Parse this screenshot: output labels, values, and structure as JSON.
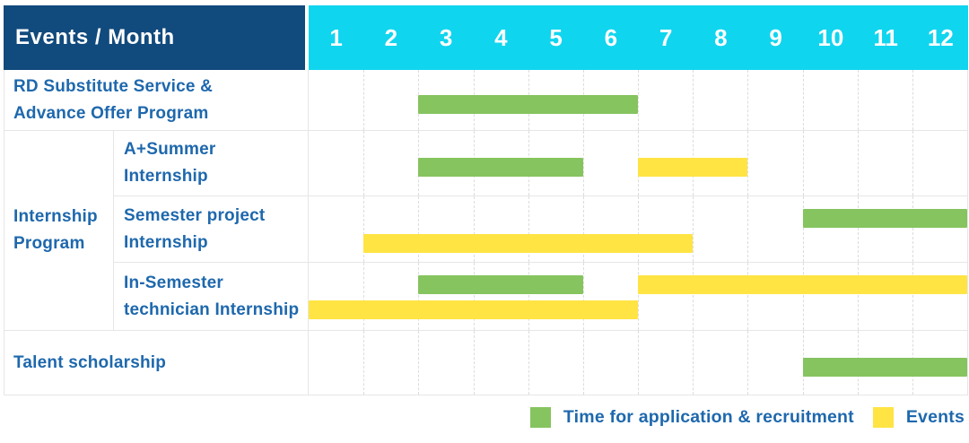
{
  "chart_data": {
    "type": "gantt",
    "corner_label": "Events / Month",
    "months": [
      "1",
      "2",
      "3",
      "4",
      "5",
      "6",
      "7",
      "8",
      "9",
      "10",
      "11",
      "12"
    ],
    "x_range": [
      1,
      12
    ],
    "grid": "vertical-dotted",
    "colors": {
      "header_bg": "#114A7D",
      "months_bg": "#10D5EF",
      "header_text": "#FFFFFF",
      "label_text": "#1E68AD",
      "grid_line": "#E6E6E8",
      "month_divider": "#DCDCDC",
      "application": "#85C45F",
      "events": "#FFE444"
    },
    "group_column": {
      "label": "Internship Program",
      "label_lines": [
        "Internship",
        "Program"
      ]
    },
    "rows": [
      {
        "label": "RD Substitute Service & Advance Offer Program",
        "label_lines": [
          "RD Substitute Service &",
          "Advance Offer Program"
        ],
        "group": null,
        "bars": [
          {
            "type": "application",
            "start_month": 3,
            "end_month": 6
          }
        ]
      },
      {
        "label": "A+Summer Internship",
        "label_lines": [
          "A+Summer",
          "Internship"
        ],
        "group": "Internship Program",
        "bars": [
          {
            "type": "application",
            "start_month": 3,
            "end_month": 5
          },
          {
            "type": "events",
            "start_month": 7,
            "end_month": 8
          }
        ]
      },
      {
        "label": "Semester project Internship",
        "label_lines": [
          "Semester project",
          "Internship"
        ],
        "group": "Internship Program",
        "bars": [
          {
            "type": "application",
            "start_month": 10,
            "end_month": 12,
            "line": 1
          },
          {
            "type": "events",
            "start_month": 2,
            "end_month": 7,
            "line": 2
          }
        ]
      },
      {
        "label": "In-Semester technician Internship",
        "label_lines": [
          "In-Semester",
          "technician Internship"
        ],
        "group": "Internship Program",
        "bars": [
          {
            "type": "application",
            "start_month": 3,
            "end_month": 5,
            "line": 1
          },
          {
            "type": "events",
            "start_month": 7,
            "end_month": 12,
            "line": 1
          },
          {
            "type": "events",
            "start_month": 1,
            "end_month": 6,
            "line": 2
          }
        ]
      },
      {
        "label": "Talent scholarship",
        "label_lines": [
          "Talent scholarship"
        ],
        "group": null,
        "bars": [
          {
            "type": "application",
            "start_month": 10,
            "end_month": 12
          }
        ]
      }
    ],
    "legend": [
      {
        "key": "application",
        "label": "Time for application & recruitment",
        "color": "#85C45F"
      },
      {
        "key": "events",
        "label": "Events",
        "color": "#FFE444"
      }
    ]
  }
}
